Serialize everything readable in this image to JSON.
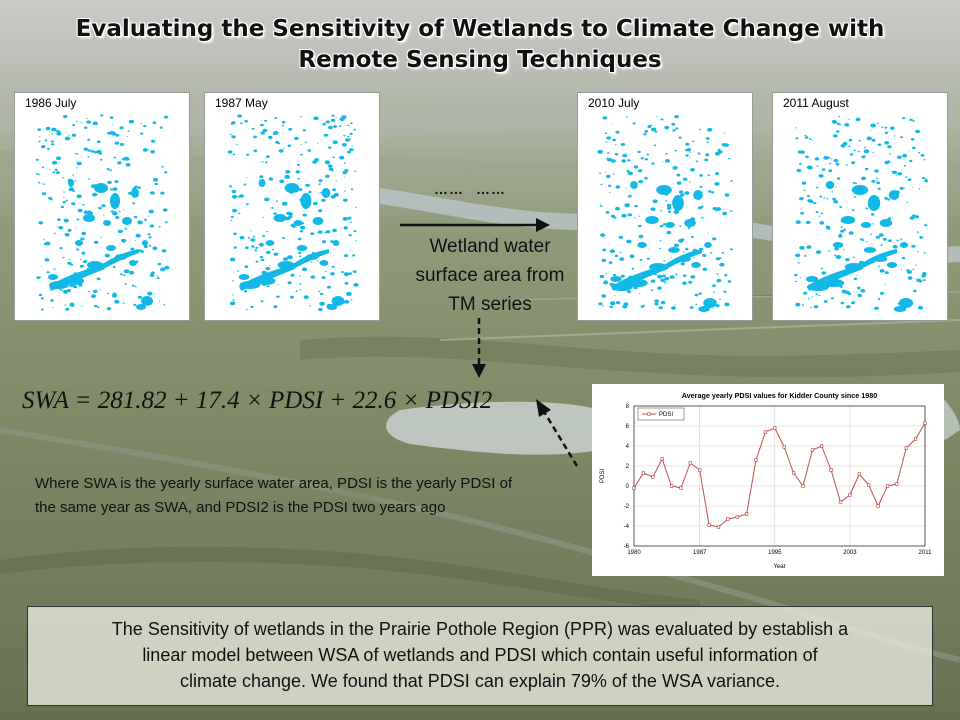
{
  "title": {
    "line1": "Evaluating the Sensitivity of Wetlands to Climate Change with",
    "line2": "Remote Sensing Techniques"
  },
  "maps": [
    {
      "label": "1986 July"
    },
    {
      "label": "1987 May"
    },
    {
      "label": "2010 July"
    },
    {
      "label": "2011 August"
    }
  ],
  "continuation": [
    "……",
    "……"
  ],
  "wetland_caption": "Wetland water surface area from TM series",
  "equation": "SWA = 281.82 + 17.4 × PDSI + 22.6 × PDSI2",
  "explanation": "Where SWA is the yearly surface water area, PDSI is the yearly PDSI of  the same year as SWA, and PDSI2 is the PDSI two years ago",
  "summary": {
    "line1": "The Sensitivity of wetlands in the Prairie Pothole Region (PPR)   was evaluated by establish a",
    "line2": "linear model between WSA of wetlands and PDSI which contain useful information of",
    "line3": "climate change. We found that PDSI can explain 79% of the WSA variance."
  },
  "colors": {
    "water": "#12b9e6",
    "series": "#c0504d"
  },
  "chart_data": {
    "type": "line",
    "title": "Average yearly PDSI values for Kidder County since 1980",
    "xlabel": "Year",
    "ylabel": "PDSI",
    "legend": {
      "position": "top-left",
      "entries": [
        "PDSI"
      ]
    },
    "x_ticks": [
      1980,
      1987,
      1995,
      2003,
      2011
    ],
    "y_ticks": [
      -6,
      -4,
      -2,
      0,
      2,
      4,
      6,
      8
    ],
    "xlim": [
      1980,
      2011
    ],
    "ylim": [
      -6,
      8
    ],
    "grid": true,
    "series": [
      {
        "name": "PDSI",
        "x": [
          1980,
          1981,
          1982,
          1983,
          1984,
          1985,
          1986,
          1987,
          1988,
          1989,
          1990,
          1991,
          1992,
          1993,
          1994,
          1995,
          1996,
          1997,
          1998,
          1999,
          2000,
          2001,
          2002,
          2003,
          2004,
          2005,
          2006,
          2007,
          2008,
          2009,
          2010,
          2011
        ],
        "values": [
          -0.2,
          1.3,
          0.9,
          2.7,
          0.0,
          -0.2,
          2.3,
          1.6,
          -3.9,
          -4.1,
          -3.3,
          -3.1,
          -2.8,
          2.6,
          5.4,
          5.8,
          3.9,
          1.3,
          0.0,
          3.6,
          4.0,
          1.6,
          -1.6,
          -0.9,
          1.2,
          0.1,
          -2.0,
          0.0,
          0.2,
          3.8,
          4.7,
          6.3
        ]
      }
    ]
  }
}
